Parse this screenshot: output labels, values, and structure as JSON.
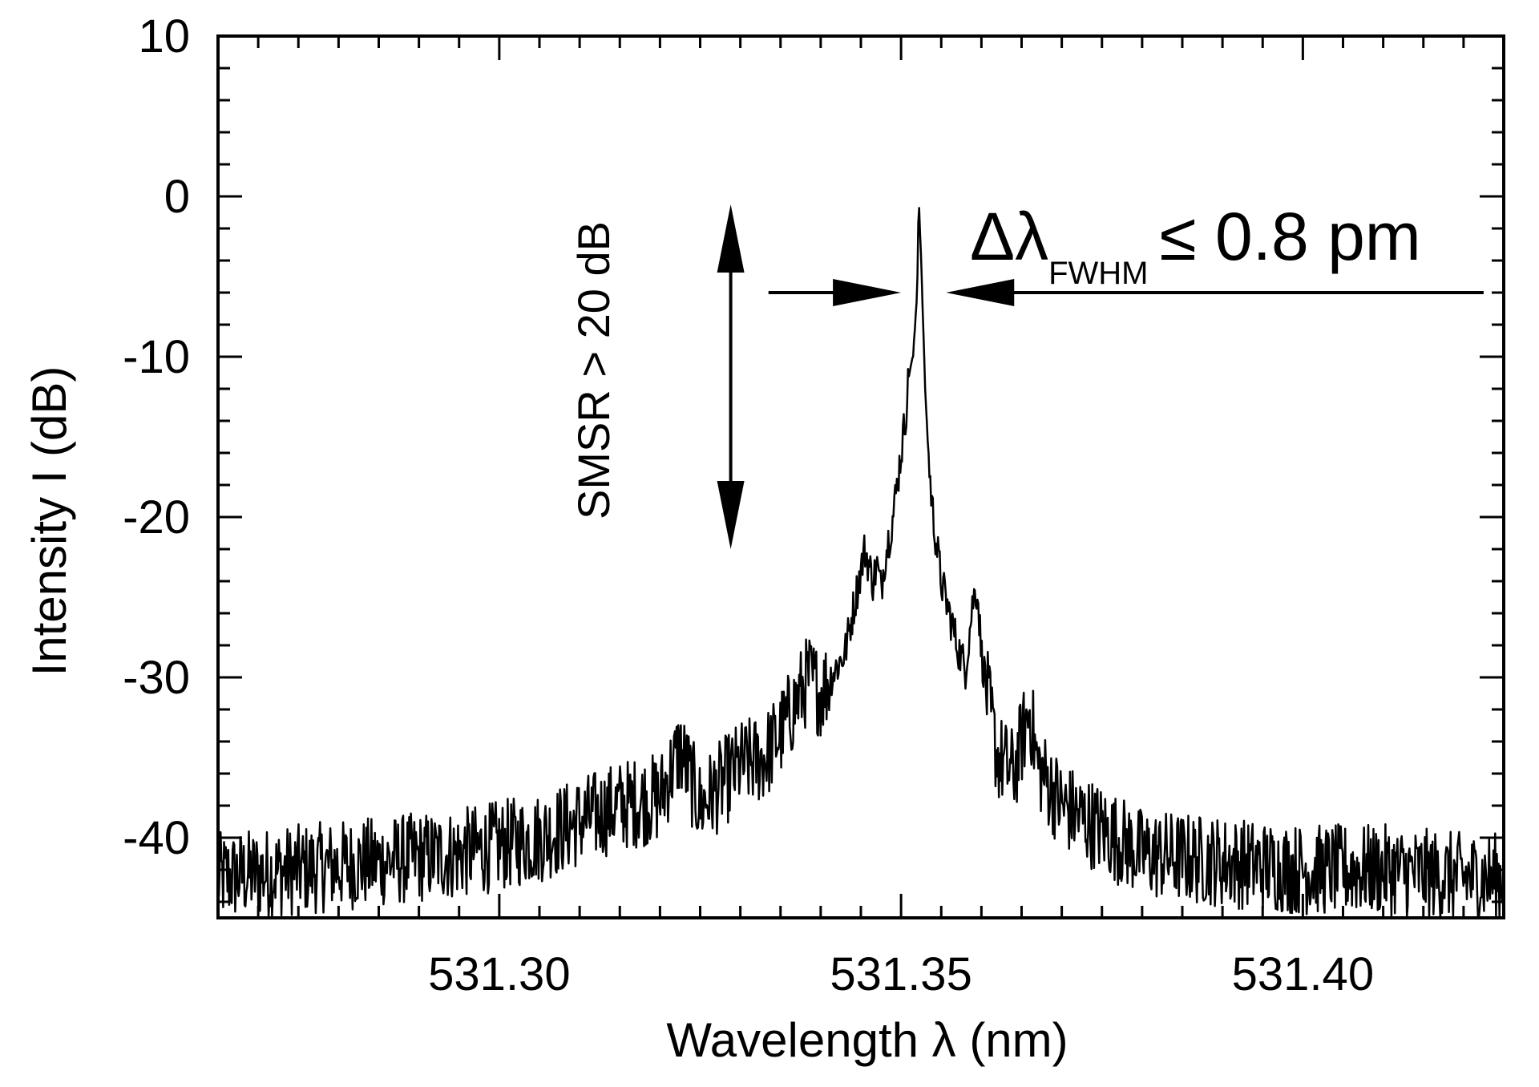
{
  "chart_data": {
    "type": "line",
    "title": "",
    "xlabel": "Wavelength λ (nm)",
    "ylabel": "Intensity I (dB)",
    "xlim": [
      531.265,
      531.425
    ],
    "ylim": [
      -45,
      10
    ],
    "x_ticks": [
      531.3,
      531.35,
      531.4
    ],
    "x_tick_labels": [
      "531.30",
      "531.35",
      "531.40"
    ],
    "y_ticks": [
      -40,
      -30,
      -20,
      -10,
      0,
      10
    ],
    "y_tick_labels": [
      "-40",
      "-30",
      "-20",
      "-10",
      "0",
      "10"
    ],
    "grid": false,
    "legend": "none",
    "series": [
      {
        "x": [
          531.265,
          531.275,
          531.285,
          531.295,
          531.305,
          531.31,
          531.315,
          531.32,
          531.3225,
          531.325,
          531.33,
          531.333,
          531.335,
          531.3385,
          531.34,
          531.343,
          531.3455,
          531.3465,
          531.347,
          531.3475,
          531.348,
          531.349,
          531.35,
          531.3505,
          531.351,
          531.3515,
          531.352,
          531.3522,
          531.3525,
          531.353,
          531.3535,
          531.354,
          531.355,
          531.356,
          531.357,
          531.358,
          531.359,
          531.3595,
          531.36,
          531.361,
          531.362,
          531.364,
          531.366,
          531.367,
          531.37,
          531.375,
          531.38,
          531.39,
          531.4,
          531.41,
          531.42,
          531.425
        ],
        "y": [
          -42.5,
          -42.0,
          -41.5,
          -41.0,
          -40.0,
          -39.0,
          -38.0,
          -37.5,
          -34.5,
          -38.0,
          -35.5,
          -35.0,
          -33.5,
          -30.0,
          -31.0,
          -28.5,
          -22.0,
          -24.0,
          -23.0,
          -24.5,
          -22.5,
          -20.0,
          -16.0,
          -14.0,
          -11.0,
          -10.0,
          -6.0,
          0.0,
          -4.0,
          -12.0,
          -17.0,
          -20.0,
          -24.0,
          -26.0,
          -28.0,
          -29.5,
          -25.0,
          -24.5,
          -28.5,
          -32.0,
          -35.0,
          -36.0,
          -32.0,
          -35.5,
          -38.0,
          -39.5,
          -41.0,
          -41.5,
          -42.0,
          -42.0,
          -42.5,
          -42.5
        ],
        "noise_db": 2.2
      }
    ],
    "annotations": {
      "smsr": "SMSR > 20 dB",
      "smsr_arrow": {
        "x": 531.3288,
        "y_top": -0.5,
        "y_bottom": -22
      },
      "fwhm_prefix": "Δλ",
      "fwhm_subscript": "FWHM",
      "fwhm_value": "≤ 0.8 pm",
      "fwhm_arrow_left": {
        "x_start": 531.3335,
        "x_tip": 531.35,
        "y": -6
      },
      "fwhm_arrow_right": {
        "x_start": 531.4225,
        "x_tip": 531.3556,
        "y": -6
      }
    }
  }
}
